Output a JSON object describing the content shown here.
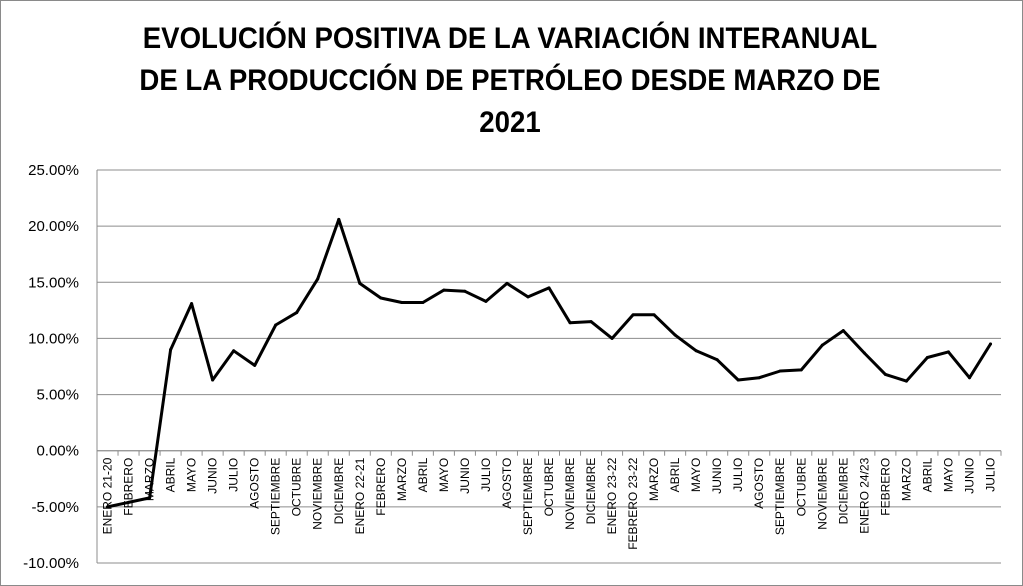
{
  "chart_data": {
    "type": "line",
    "title": "EVOLUCIÓN POSITIVA DE LA VARIACIÓN INTERANUAL DE LA PRODUCCIÓN DE PETRÓLEO DESDE MARZO DE 2021",
    "title_lines": [
      "EVOLUCIÓN POSITIVA DE LA VARIACIÓN INTERANUAL",
      "DE LA PRODUCCIÓN DE PETRÓLEO DESDE MARZO DE",
      "2021"
    ],
    "xlabel": "",
    "ylabel": "",
    "ylim": [
      -10,
      25
    ],
    "yticks": [
      -10,
      -5,
      0,
      5,
      10,
      15,
      20,
      25
    ],
    "ytick_labels": [
      "-10.00%",
      "-5.00%",
      "0.00%",
      "5.00%",
      "10.00%",
      "15.00%",
      "20.00%",
      "25.00%"
    ],
    "grid": true,
    "legend": "none",
    "categories": [
      "ENERO 21-20",
      "FEBRERO",
      "MARZO",
      "ABRIL",
      "MAYO",
      "JUNIO",
      "JULIO",
      "AGOSTO",
      "SEPTIEMBRE",
      "OCTUBRE",
      "NOVIEMBRE",
      "DICIEMBRE",
      "ENERO 22-21",
      "FEBRERO",
      "MARZO",
      "ABRIL",
      "MAYO",
      "JUNIO",
      "JULIO",
      "AGOSTO",
      "SEPTIEMBRE",
      "OCTUBRE",
      "NOVIEMBRE",
      "DICIEMBRE",
      "ENERO 23-22",
      "FEBRERO 23-22",
      "MARZO",
      "ABRIL",
      "MAYO",
      "JUNIO",
      "JULIO",
      "AGOSTO",
      "SEPTIEMBRE",
      "OCTUBRE",
      "NOVIEMBRE",
      "DICIEMBRE",
      "ENERO 24/23",
      "FEBRERO",
      "MARZO",
      "ABRIL",
      "MAYO",
      "JUNIO",
      "JULIO"
    ],
    "series": [
      {
        "color": "#000000",
        "values": [
          -5.0,
          -4.6,
          -4.2,
          9.0,
          13.1,
          6.3,
          8.9,
          7.6,
          11.2,
          12.3,
          15.3,
          20.6,
          14.9,
          13.6,
          13.2,
          13.2,
          14.3,
          14.2,
          13.3,
          14.9,
          13.7,
          14.5,
          11.4,
          11.5,
          10.0,
          12.1,
          12.1,
          10.3,
          8.9,
          8.1,
          6.3,
          6.5,
          7.1,
          7.2,
          9.4,
          10.7,
          8.7,
          6.8,
          6.2,
          8.3,
          8.8,
          6.5,
          9.5
        ]
      }
    ]
  }
}
